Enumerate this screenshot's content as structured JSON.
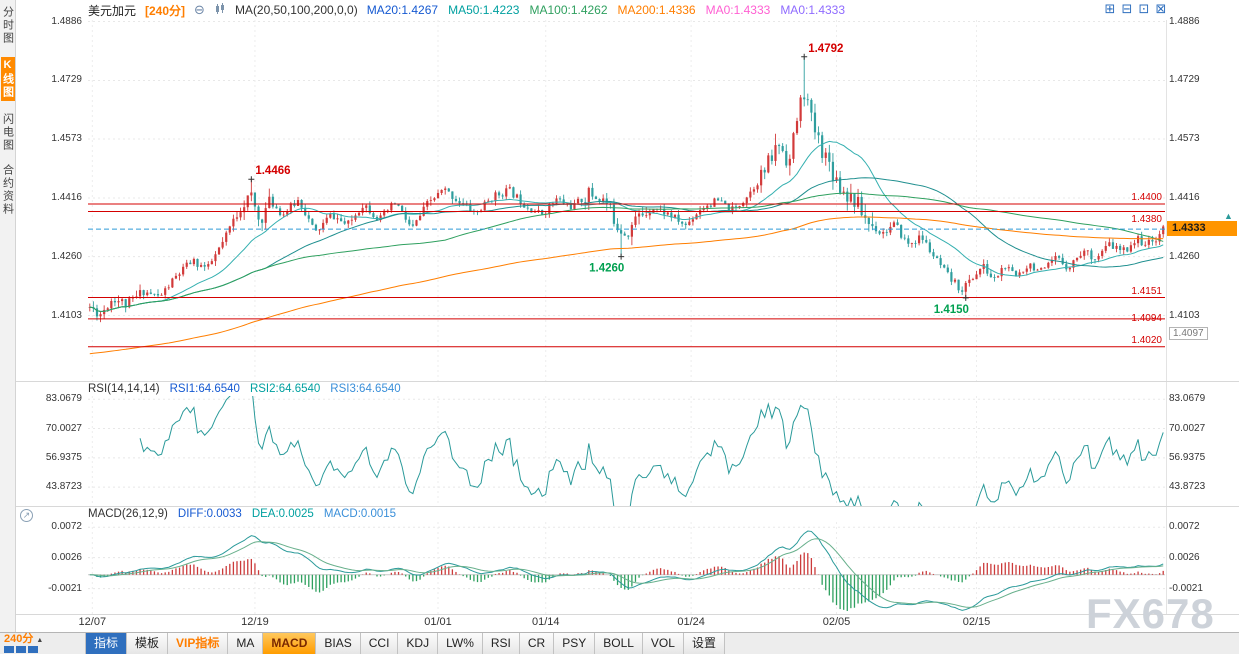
{
  "sidebar": {
    "items": [
      {
        "label": "分时图",
        "active": false
      },
      {
        "label": "K线图",
        "active": true
      },
      {
        "label": "闪电图",
        "active": false
      },
      {
        "label": "合约资料",
        "active": false
      }
    ]
  },
  "header": {
    "symbol": "美元加元",
    "period": "[240分]",
    "zoom_out_glyph": "⊖",
    "ma_params": "MA(20,50,100,200,0,0)",
    "ma_values": [
      {
        "label": "MA20:1.4267",
        "color": "#1559d1"
      },
      {
        "label": "MA50:1.4223",
        "color": "#00a0a0"
      },
      {
        "label": "MA100:1.4262",
        "color": "#2fa05f"
      },
      {
        "label": "MA200:1.4336",
        "color": "#ff7e00"
      },
      {
        "label": "MA0:1.4333",
        "color": "#ff5fd2"
      },
      {
        "label": "MA0:1.4333",
        "color": "#8f6bff"
      }
    ],
    "window_icons": [
      {
        "name": "grid-layout-icon",
        "glyph": "⊞"
      },
      {
        "name": "horizontal-split-icon",
        "glyph": "⊟"
      },
      {
        "name": "vertical-split-icon",
        "glyph": "⊡"
      },
      {
        "name": "dock-right-icon",
        "glyph": "⊠"
      }
    ]
  },
  "rsi": {
    "title": "RSI(14,14,14)",
    "values": [
      {
        "label": "RSI1:64.6540",
        "color": "#1559d1"
      },
      {
        "label": "RSI2:64.6540",
        "color": "#00a0a0"
      },
      {
        "label": "RSI3:64.6540",
        "color": "#3a8fd9"
      }
    ]
  },
  "macd": {
    "title": "MACD(26,12,9)",
    "values": [
      {
        "label": "DIFF:0.0033",
        "color": "#1559d1"
      },
      {
        "label": "DEA:0.0025",
        "color": "#00a0a0"
      },
      {
        "label": "MACD:0.0015",
        "color": "#3a8fd9"
      }
    ]
  },
  "toolbar": {
    "period": "240分",
    "buttons": [
      {
        "label": "指标",
        "style": "primary"
      },
      {
        "label": "模板",
        "style": ""
      },
      {
        "label": "VIP指标",
        "style": "vip"
      },
      {
        "label": "MA",
        "style": ""
      },
      {
        "label": "MACD",
        "style": "active"
      },
      {
        "label": "BIAS",
        "style": ""
      },
      {
        "label": "CCI",
        "style": ""
      },
      {
        "label": "KDJ",
        "style": ""
      },
      {
        "label": "LW%",
        "style": ""
      },
      {
        "label": "RSI",
        "style": ""
      },
      {
        "label": "CR",
        "style": ""
      },
      {
        "label": "PSY",
        "style": ""
      },
      {
        "label": "BOLL",
        "style": ""
      },
      {
        "label": "VOL",
        "style": ""
      },
      {
        "label": "设置",
        "style": ""
      }
    ]
  },
  "watermark": "FX678",
  "chart_data": [
    {
      "type": "candlestick",
      "panel": "main",
      "symbol": "美元加元",
      "interval": "240分",
      "y_ticks": [
        "1.4886",
        "1.4729",
        "1.4573",
        "1.4416",
        "1.4260",
        "1.4103"
      ],
      "ylim": [
        1.3926,
        1.489
      ],
      "x_ticks": [
        {
          "label": "12/07",
          "f": 0.004
        },
        {
          "label": "12/19",
          "f": 0.155
        },
        {
          "label": "01/01",
          "f": 0.325
        },
        {
          "label": "01/14",
          "f": 0.425
        },
        {
          "label": "01/24",
          "f": 0.56
        },
        {
          "label": "02/05",
          "f": 0.695
        },
        {
          "label": "02/15",
          "f": 0.825
        }
      ],
      "current_price": 1.4333,
      "h_lines": [
        1.44,
        1.438,
        1.4151,
        1.4094,
        1.402
      ],
      "right_labels": [
        {
          "text": "1.4400",
          "value": 1.44,
          "dy": -12,
          "style": "line-red"
        },
        {
          "text": "1.4380",
          "value": 1.438,
          "dy": 2,
          "style": "line-red"
        },
        {
          "text": "1.4151",
          "value": 1.4151,
          "dy": -12,
          "style": "line-red"
        },
        {
          "text": "1.4094",
          "value": 1.4094,
          "dy": -6,
          "style": "line-red"
        },
        {
          "text": "1.4020",
          "value": 1.402,
          "dy": -12,
          "style": "line-red"
        },
        {
          "text": "1.4097",
          "value": 1.4097,
          "dy": 9,
          "style": "gray-box"
        },
        {
          "text": "1.4333",
          "value": 1.4333,
          "dy": -8,
          "style": "badge"
        }
      ],
      "annotations": [
        {
          "f": 0.15,
          "type": "high",
          "value": 1.4466,
          "label": "1.4466",
          "color": "#d40000"
        },
        {
          "f": 0.665,
          "type": "high",
          "value": 1.4792,
          "label": "1.4792",
          "color": "#d40000"
        },
        {
          "f": 0.495,
          "type": "low",
          "value": 1.426,
          "label": "1.4260",
          "color": "#00a050"
        },
        {
          "f": 0.815,
          "type": "low",
          "value": 1.415,
          "label": "1.4150",
          "color": "#00a050"
        }
      ],
      "candles_n": 300,
      "seed": 11,
      "keyframes": [
        [
          0.0,
          1.4125
        ],
        [
          0.01,
          1.4108
        ],
        [
          0.022,
          1.4152
        ],
        [
          0.035,
          1.413
        ],
        [
          0.05,
          1.4168
        ],
        [
          0.065,
          1.4152
        ],
        [
          0.08,
          1.4205
        ],
        [
          0.095,
          1.4248
        ],
        [
          0.11,
          1.4228
        ],
        [
          0.125,
          1.4302
        ],
        [
          0.14,
          1.4392
        ],
        [
          0.15,
          1.4422
        ],
        [
          0.158,
          1.4352
        ],
        [
          0.168,
          1.4408
        ],
        [
          0.18,
          1.4372
        ],
        [
          0.195,
          1.4412
        ],
        [
          0.21,
          1.4322
        ],
        [
          0.225,
          1.4372
        ],
        [
          0.24,
          1.4342
        ],
        [
          0.255,
          1.4402
        ],
        [
          0.27,
          1.4358
        ],
        [
          0.285,
          1.4405
        ],
        [
          0.3,
          1.4332
        ],
        [
          0.315,
          1.4402
        ],
        [
          0.33,
          1.4438
        ],
        [
          0.345,
          1.4405
        ],
        [
          0.36,
          1.4375
        ],
        [
          0.375,
          1.4418
        ],
        [
          0.39,
          1.4438
        ],
        [
          0.405,
          1.44
        ],
        [
          0.42,
          1.4372
        ],
        [
          0.435,
          1.4412
        ],
        [
          0.45,
          1.4392
        ],
        [
          0.465,
          1.4428
        ],
        [
          0.48,
          1.4408
        ],
        [
          0.492,
          1.4342
        ],
        [
          0.5,
          1.4322
        ],
        [
          0.51,
          1.4365
        ],
        [
          0.525,
          1.4392
        ],
        [
          0.54,
          1.4372
        ],
        [
          0.555,
          1.4342
        ],
        [
          0.57,
          1.4392
        ],
        [
          0.585,
          1.4408
        ],
        [
          0.6,
          1.4382
        ],
        [
          0.615,
          1.4432
        ],
        [
          0.63,
          1.4492
        ],
        [
          0.642,
          1.4562
        ],
        [
          0.652,
          1.4512
        ],
        [
          0.66,
          1.4645
        ],
        [
          0.666,
          1.4705
        ],
        [
          0.672,
          1.4622
        ],
        [
          0.68,
          1.4562
        ],
        [
          0.69,
          1.4502
        ],
        [
          0.7,
          1.4442
        ],
        [
          0.712,
          1.4412
        ],
        [
          0.725,
          1.4352
        ],
        [
          0.738,
          1.4322
        ],
        [
          0.75,
          1.4345
        ],
        [
          0.762,
          1.4292
        ],
        [
          0.775,
          1.4312
        ],
        [
          0.788,
          1.4252
        ],
        [
          0.8,
          1.4205
        ],
        [
          0.812,
          1.4172
        ],
        [
          0.822,
          1.4202
        ],
        [
          0.832,
          1.4235
        ],
        [
          0.842,
          1.4196
        ],
        [
          0.852,
          1.4235
        ],
        [
          0.862,
          1.4206
        ],
        [
          0.875,
          1.4242
        ],
        [
          0.888,
          1.4216
        ],
        [
          0.9,
          1.4256
        ],
        [
          0.912,
          1.4232
        ],
        [
          0.925,
          1.4276
        ],
        [
          0.938,
          1.4256
        ],
        [
          0.95,
          1.4292
        ],
        [
          0.962,
          1.4272
        ],
        [
          0.975,
          1.4306
        ],
        [
          0.988,
          1.4292
        ],
        [
          1.0,
          1.4333
        ]
      ],
      "vol_zones": [
        [
          0.0,
          0.05,
          1.4
        ],
        [
          0.13,
          0.17,
          1.7
        ],
        [
          0.46,
          0.52,
          1.8
        ],
        [
          0.625,
          0.73,
          2.4
        ]
      ],
      "ma": [
        {
          "period": 20,
          "color": "#35b0b0",
          "type": "sma"
        },
        {
          "period": 50,
          "color": "#1f8f8f",
          "type": "sma"
        },
        {
          "period": 100,
          "color": "#2fa05f",
          "type": "sma"
        },
        {
          "period": 200,
          "color": "#ff7e00",
          "type": "ema",
          "seed": 1.4
        }
      ],
      "colors": {
        "up": "#d23a3a",
        "down": "#2f9e9e",
        "current_line": "#2e9bd6",
        "level_line": "#d40000"
      }
    },
    {
      "type": "line",
      "panel": "rsi",
      "y_ticks": [
        "83.0679",
        "70.0027",
        "56.9375",
        "43.8723"
      ],
      "ylim": [
        35.46,
        84.5
      ],
      "period": 14,
      "color": "#2a9a9a",
      "last": "64.6540"
    },
    {
      "type": "macd",
      "panel": "macd",
      "y_ticks": [
        "0.0072",
        "0.0026",
        "-0.0021"
      ],
      "ylim": [
        -0.00595,
        0.008
      ],
      "diff_last": "0.0033",
      "dea_last": "0.0025",
      "macd_last": "0.0015",
      "colors": {
        "diff": "#2a9a9a",
        "dea": "#68b08c",
        "hist_up": "#cc3b3b",
        "hist_down": "#2fa05f"
      }
    }
  ]
}
